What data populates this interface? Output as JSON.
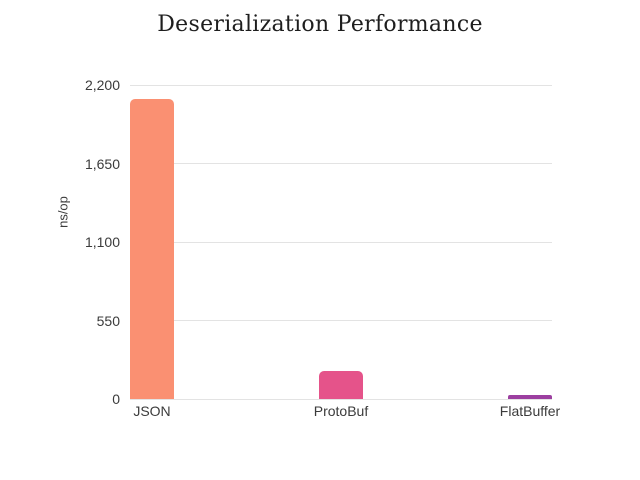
{
  "chart_data": {
    "type": "bar",
    "title": "Deserialization Performance",
    "ylabel": "ns/op",
    "xlabel": "",
    "categories": [
      "JSON",
      "ProtoBuf",
      "FlatBuffer"
    ],
    "values": [
      2100,
      195,
      25
    ],
    "bar_colors": [
      "#FA9072",
      "#E5538A",
      "#9C3FA0"
    ],
    "ylim": [
      0,
      2200
    ],
    "yticks": [
      {
        "value": 0,
        "label": "0"
      },
      {
        "value": 550,
        "label": "550"
      },
      {
        "value": 1100,
        "label": "1,100"
      },
      {
        "value": 1650,
        "label": "1,650"
      },
      {
        "value": 2200,
        "label": "2,200"
      }
    ],
    "grid": true,
    "gridline_color": "#e3e3e3",
    "background": "#ffffff",
    "legend": null,
    "legend_position": "none"
  }
}
